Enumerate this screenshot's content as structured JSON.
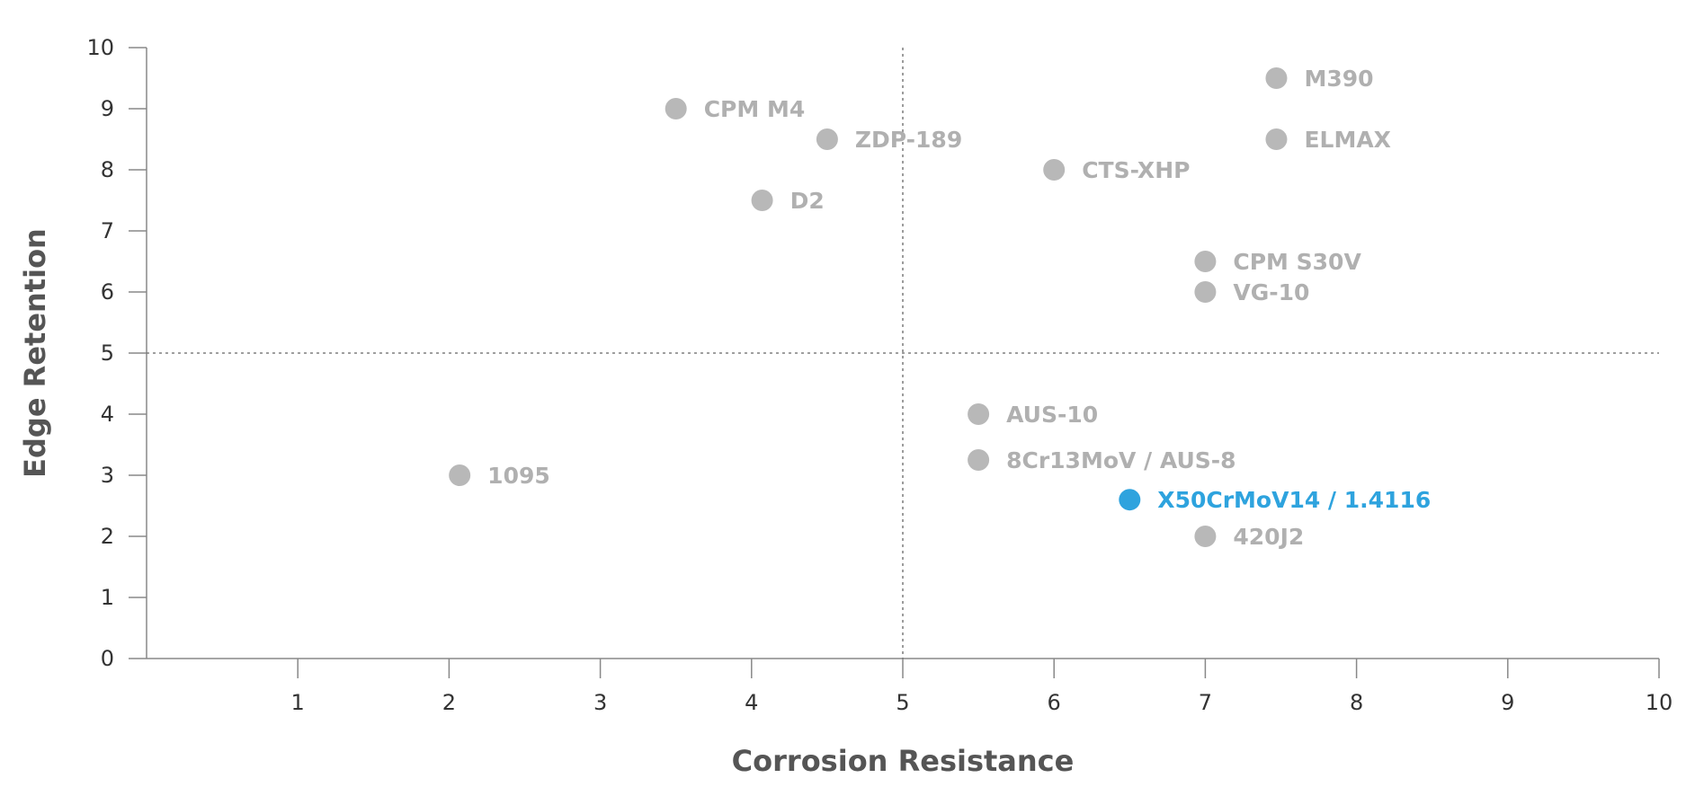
{
  "chart_data": {
    "type": "scatter",
    "title": "",
    "xlabel": "Corrosion Resistance",
    "ylabel": "Edge Retention",
    "xlim": [
      0,
      10
    ],
    "ylim": [
      0,
      10
    ],
    "x_ticks": [
      "1",
      "2",
      "3",
      "4",
      "5",
      "6",
      "7",
      "8",
      "9",
      "10"
    ],
    "y_ticks": [
      "0",
      "1",
      "2",
      "3",
      "4",
      "5",
      "6",
      "7",
      "8",
      "9",
      "10"
    ],
    "reference_lines": {
      "x": 5,
      "y": 5,
      "style": "dotted"
    },
    "grid": false,
    "default_color": "#b8b8b8",
    "highlight_color": "#2ea3de",
    "label_color": "#b0b0b0",
    "points": [
      {
        "label": "CPM M4",
        "x": 3.5,
        "y": 9.0
      },
      {
        "label": "ZDP-189",
        "x": 4.5,
        "y": 8.5
      },
      {
        "label": "D2",
        "x": 4.07,
        "y": 7.5
      },
      {
        "label": "M390",
        "x": 7.47,
        "y": 9.5
      },
      {
        "label": "ELMAX",
        "x": 7.47,
        "y": 8.5
      },
      {
        "label": "CTS-XHP",
        "x": 6.0,
        "y": 8.0
      },
      {
        "label": "CPM S30V",
        "x": 7.0,
        "y": 6.5
      },
      {
        "label": "VG-10",
        "x": 7.0,
        "y": 6.0
      },
      {
        "label": "AUS-10",
        "x": 5.5,
        "y": 4.0
      },
      {
        "label": "8Cr13MoV / AUS-8",
        "x": 5.5,
        "y": 3.25
      },
      {
        "label": "X50CrMoV14 / 1.4116",
        "x": 6.5,
        "y": 2.6,
        "highlight": true
      },
      {
        "label": "420J2",
        "x": 7.0,
        "y": 2.0
      },
      {
        "label": "1095",
        "x": 2.07,
        "y": 3.0
      }
    ]
  }
}
